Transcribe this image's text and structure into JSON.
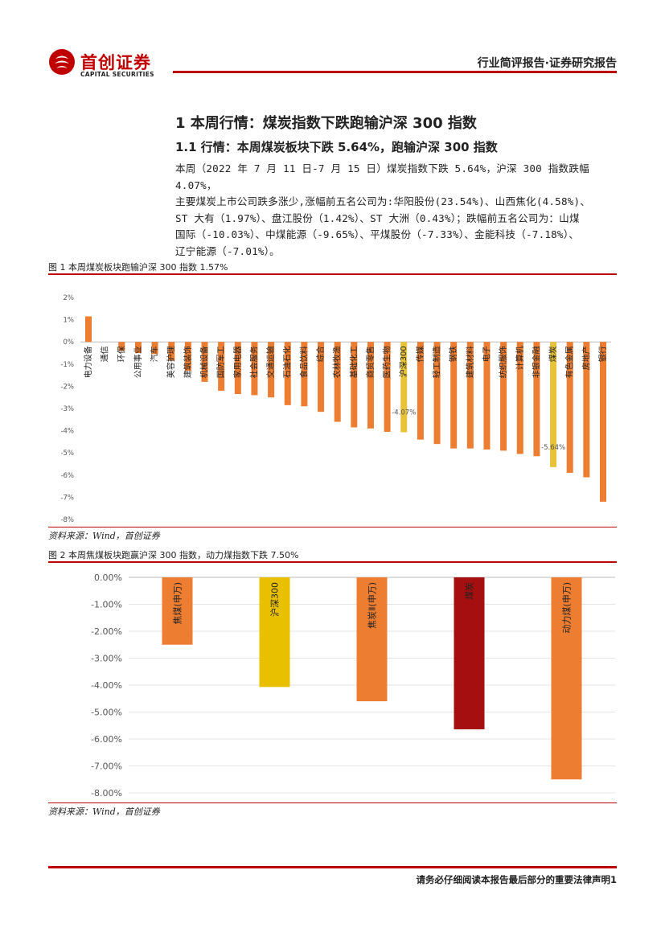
{
  "header": {
    "logo_cn": "首创证券",
    "logo_en": "CAPITAL SECURITIES",
    "report_type": "行业简评报告·证券研究报告"
  },
  "section": {
    "h1": "1 本周行情：煤炭指数下跌跑输沪深 300 指数",
    "h2": "1.1 行情：本周煤炭板块下跌 5.64%，跑输沪深 300 指数",
    "paragraph_lines": [
      "本周（2022 年 7 月 11 日-7 月 15 日）煤炭指数下跌 5.64%，沪深 300 指数跌幅 4.07%，",
      "主要煤炭上市公司跌多涨少,涨幅前五名公司为:华阳股份(23.54%)、山西焦化(4.58%)、",
      "ST 大有（1.97%）、盘江股份（1.42%）、ST 大洲（0.43%）；跌幅前五名公司为：山煤",
      "国际（-10.03%）、中煤能源（-9.65%）、平煤股份（-7.33%）、金能科技（-7.18%）、",
      "辽宁能源（-7.01%）。"
    ]
  },
  "figure1": {
    "caption": "图 1 本周煤炭板块跑输沪深 300 指数 1.57%",
    "source": "资料来源：Wind，首创证券"
  },
  "figure2": {
    "caption": "图 2 本周焦煤板块跑赢沪深 300 指数，动力煤指数下跌 7.50%",
    "source": "资料来源：Wind，首创证券"
  },
  "footer": {
    "disclaimer": "请务必仔细阅读本报告最后部分的重要法律声明",
    "page_number": "1"
  },
  "colors": {
    "accent": "#c00000",
    "orange": "#ed7d31",
    "yellow": "#e8c33a",
    "dark_red": "#a50f0f"
  },
  "chart_data": [
    {
      "type": "bar",
      "title": "图 1 本周煤炭板块跑输沪深 300 指数 1.57%",
      "categories": [
        "电力设备",
        "通信",
        "环保",
        "公用事业",
        "汽车",
        "美容护理",
        "建筑装饰",
        "机械设备",
        "国防军工",
        "家用电器",
        "社会服务",
        "交通运输",
        "石油石化",
        "食品饮料",
        "综合",
        "农林牧渔",
        "基础化工",
        "商贸零售",
        "医药生物",
        "沪深300",
        "传媒",
        "轻工制造",
        "钢铁",
        "建筑材料",
        "电子",
        "纺织服饰",
        "计算机",
        "非银金融",
        "煤炭",
        "有色金属",
        "房地产",
        "银行"
      ],
      "values": [
        1.15,
        0.0,
        -0.4,
        -0.5,
        -0.55,
        -0.85,
        -1.3,
        -1.8,
        -2.2,
        -2.35,
        -2.4,
        -2.5,
        -2.85,
        -2.9,
        -3.15,
        -3.6,
        -3.85,
        -3.9,
        -4.05,
        -4.07,
        -4.4,
        -4.6,
        -4.8,
        -4.8,
        -4.85,
        -4.9,
        -5.05,
        -5.15,
        -5.64,
        -5.9,
        -6.1,
        -7.2
      ],
      "highlight": {
        "沪深300": "#e8c33a",
        "煤炭": "#e8c33a"
      },
      "data_labels": {
        "沪深300": "-4.07%",
        "煤炭": "-5.64%"
      },
      "yticks": [
        "2%",
        "1%",
        "0%",
        "-1%",
        "-2%",
        "-3%",
        "-4%",
        "-5%",
        "-6%",
        "-7%",
        "-8%"
      ],
      "ylim": [
        -8,
        2
      ]
    },
    {
      "type": "bar",
      "title": "图 2 本周焦煤板块跑赢沪深 300 指数，动力煤指数下跌 7.50%",
      "categories": [
        "焦煤(申万)",
        "沪深300",
        "焦炭Ⅱ(申万)",
        "煤炭",
        "动力煤(申万)"
      ],
      "values": [
        -2.5,
        -4.07,
        -4.6,
        -5.64,
        -7.5
      ],
      "colors": [
        "#ed7d31",
        "#e8c000",
        "#ed7d31",
        "#a50f0f",
        "#ed7d31"
      ],
      "yticks": [
        "0.00%",
        "-1.00%",
        "-2.00%",
        "-3.00%",
        "-4.00%",
        "-5.00%",
        "-6.00%",
        "-7.00%",
        "-8.00%"
      ],
      "ylim": [
        -8,
        0
      ]
    }
  ]
}
